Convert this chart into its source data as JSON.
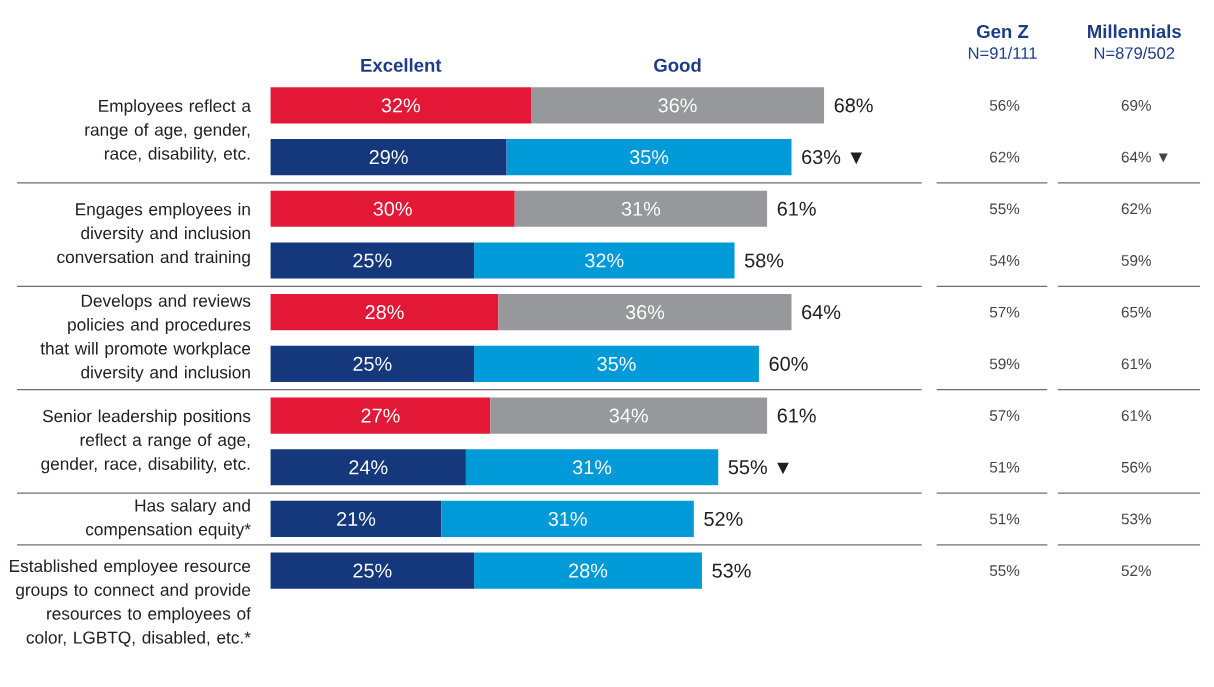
{
  "chart_data": [
    {
      "type": "bar",
      "orientation": "horizontal",
      "stacked": true,
      "tick_labels": "y",
      "grid": "y",
      "categories": [
        "Employees reflect a range of age, gender, race, disability, etc.",
        null,
        "Engages employees in diversity and inclusion conversation and training",
        null,
        "Develops and reviews policies and procedures that will promote workplace diversity and inclusion",
        null,
        "Senior leadership positions reflect a range of age, gender, race, disability, etc.",
        null,
        "Has salary and compensation equity*",
        "Established employee resource groups to connect and provide resources to employees of color, LGBTQ, disabled, etc.*"
      ],
      "series": [
        {
          "name": "Excellent",
          "values": [
            32,
            29,
            30,
            25,
            28,
            25,
            27,
            24,
            21,
            25
          ],
          "colors": [
            "#e31837",
            "#15377c",
            "#e31837",
            "#15377c",
            "#e31837",
            "#15377c",
            "#e31837",
            "#15377c",
            "#15377c",
            "#15377c"
          ],
          "value_labels": [
            "32%",
            "29%",
            "30%",
            "25%",
            "28%",
            "25%",
            "27%",
            "24%",
            "21%",
            "25%"
          ]
        },
        {
          "name": "Good",
          "values": [
            36,
            35,
            31,
            32,
            36,
            35,
            34,
            31,
            31,
            28
          ],
          "colors": [
            "#97989b",
            "#009ad9",
            "#97989b",
            "#009ad9",
            "#97989b",
            "#009ad9",
            "#97989b",
            "#009ad9",
            "#009ad9",
            "#009ad9"
          ],
          "value_labels": [
            "36%",
            "35%",
            "31%",
            "32%",
            "36%",
            "35%",
            "34%",
            "31%",
            "31%",
            "28%"
          ]
        }
      ],
      "totals": [
        "68%",
        "63% ▼",
        "61%",
        "58%",
        "64%",
        "60%",
        "61%",
        "55% ▼",
        "52%",
        "53%"
      ]
    },
    {
      "type": "other",
      "categories": [
        "Gen Z",
        "Millennials"
      ],
      "annotations": [
        "N=91/111",
        "N=879/502",
        "56%",
        "69%",
        "62%",
        "64% ▼",
        "55%",
        "62%",
        "54%",
        "59%",
        "57%",
        "65%",
        "59%",
        "61%",
        "57%",
        "61%",
        "51%",
        "56%",
        "51%",
        "53%",
        "55%",
        "52%"
      ]
    }
  ]
}
